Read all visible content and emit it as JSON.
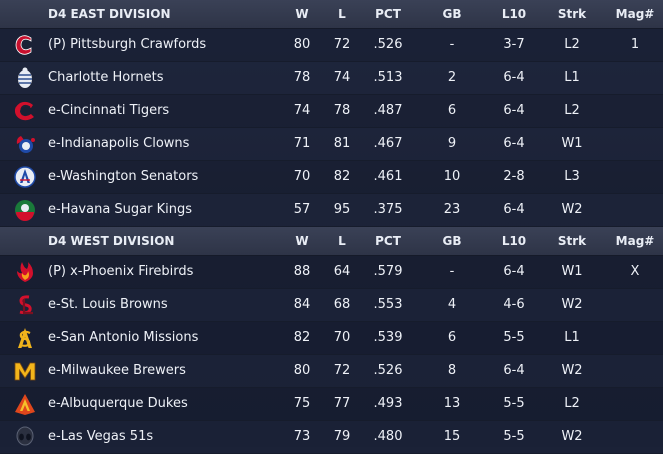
{
  "columns": {
    "w": "W",
    "l": "L",
    "pct": "PCT",
    "gb": "GB",
    "l10": "L10",
    "strk": "Strk",
    "mag": "Mag#"
  },
  "divisions": [
    {
      "title": "D4 EAST DIVISION",
      "teams": [
        {
          "name": "(P) Pittsburgh Crawfords",
          "w": "80",
          "l": "72",
          "pct": ".526",
          "gb": "-",
          "l10": "3-7",
          "strk": "L2",
          "mag": "1",
          "icon": "pittsburgh-crawfords-logo-icon"
        },
        {
          "name": "Charlotte Hornets",
          "w": "78",
          "l": "74",
          "pct": ".513",
          "gb": "2",
          "l10": "6-4",
          "strk": "L1",
          "mag": "",
          "icon": "charlotte-hornets-logo-icon"
        },
        {
          "name": "e-Cincinnati Tigers",
          "w": "74",
          "l": "78",
          "pct": ".487",
          "gb": "6",
          "l10": "6-4",
          "strk": "L2",
          "mag": "",
          "icon": "cincinnati-tigers-logo-icon"
        },
        {
          "name": "e-Indianapolis Clowns",
          "w": "71",
          "l": "81",
          "pct": ".467",
          "gb": "9",
          "l10": "6-4",
          "strk": "W1",
          "mag": "",
          "icon": "indianapolis-clowns-logo-icon"
        },
        {
          "name": "e-Washington Senators",
          "w": "70",
          "l": "82",
          "pct": ".461",
          "gb": "10",
          "l10": "2-8",
          "strk": "L3",
          "mag": "",
          "icon": "washington-senators-logo-icon"
        },
        {
          "name": "e-Havana Sugar Kings",
          "w": "57",
          "l": "95",
          "pct": ".375",
          "gb": "23",
          "l10": "6-4",
          "strk": "W2",
          "mag": "",
          "icon": "havana-sugar-kings-logo-icon"
        }
      ]
    },
    {
      "title": "D4 WEST DIVISION",
      "teams": [
        {
          "name": "(P) x-Phoenix Firebirds",
          "w": "88",
          "l": "64",
          "pct": ".579",
          "gb": "-",
          "l10": "6-4",
          "strk": "W1",
          "mag": "X",
          "icon": "phoenix-firebirds-logo-icon"
        },
        {
          "name": "e-St. Louis Browns",
          "w": "84",
          "l": "68",
          "pct": ".553",
          "gb": "4",
          "l10": "4-6",
          "strk": "W2",
          "mag": "",
          "icon": "st-louis-browns-logo-icon"
        },
        {
          "name": "e-San Antonio Missions",
          "w": "82",
          "l": "70",
          "pct": ".539",
          "gb": "6",
          "l10": "5-5",
          "strk": "L1",
          "mag": "",
          "icon": "san-antonio-missions-logo-icon"
        },
        {
          "name": "e-Milwaukee Brewers",
          "w": "80",
          "l": "72",
          "pct": ".526",
          "gb": "8",
          "l10": "6-4",
          "strk": "W2",
          "mag": "",
          "icon": "milwaukee-brewers-logo-icon"
        },
        {
          "name": "e-Albuquerque Dukes",
          "w": "75",
          "l": "77",
          "pct": ".493",
          "gb": "13",
          "l10": "5-5",
          "strk": "L2",
          "mag": "",
          "icon": "albuquerque-dukes-logo-icon"
        },
        {
          "name": "e-Las Vegas 51s",
          "w": "73",
          "l": "79",
          "pct": ".480",
          "gb": "15",
          "l10": "5-5",
          "strk": "W2",
          "mag": "",
          "icon": "las-vegas-51s-logo-icon"
        }
      ]
    }
  ]
}
